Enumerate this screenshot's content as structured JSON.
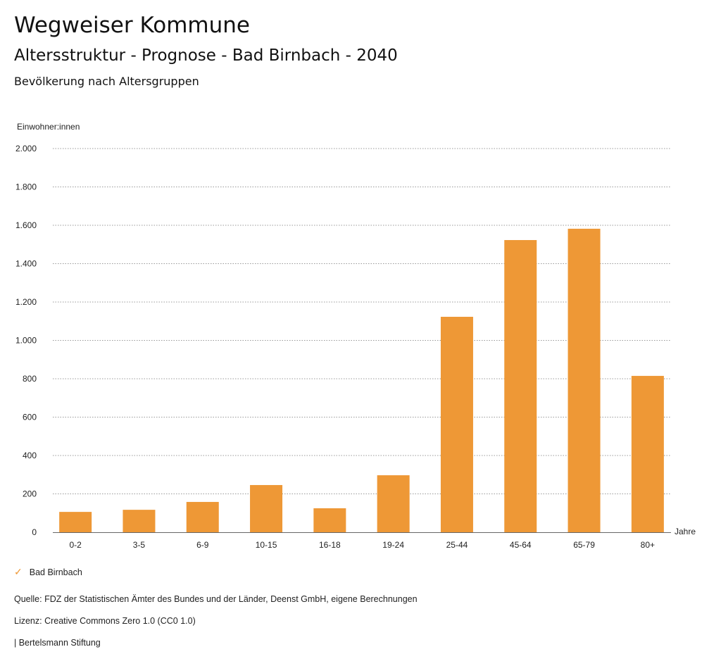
{
  "header": {
    "title": "Wegweiser Kommune",
    "subtitle": "Altersstruktur - Prognose - Bad Birnbach - 2040",
    "chart_heading": "Bevölkerung nach Altersgruppen"
  },
  "chart_data": {
    "type": "bar",
    "title": "Bevölkerung nach Altersgruppen",
    "ylabel": "Einwohner:innen",
    "xlabel": "Jahre",
    "ylim": [
      0,
      2000
    ],
    "yticks": [
      0,
      200,
      400,
      600,
      800,
      1000,
      1200,
      1400,
      1600,
      1800,
      2000
    ],
    "ytick_labels": [
      "0",
      "200",
      "400",
      "600",
      "800",
      "1.000",
      "1.200",
      "1.400",
      "1.600",
      "1.800",
      "2.000"
    ],
    "categories": [
      "0-2",
      "3-5",
      "6-9",
      "10-15",
      "16-18",
      "19-24",
      "25-44",
      "45-64",
      "65-79",
      "80+"
    ],
    "series": [
      {
        "name": "Bad Birnbach",
        "color": "#ee9836",
        "values": [
          106,
          117,
          158,
          246,
          125,
          297,
          1123,
          1523,
          1582,
          815
        ]
      }
    ],
    "grid": true,
    "legend": "bottom-left"
  },
  "footer": {
    "source": "Quelle: FDZ der Statistischen Ämter des Bundes und der Länder, Deenst GmbH, eigene Berechnungen",
    "license": "Lizenz: Creative Commons Zero 1.0 (CC0 1.0)",
    "brand": "| Bertelsmann Stiftung"
  }
}
